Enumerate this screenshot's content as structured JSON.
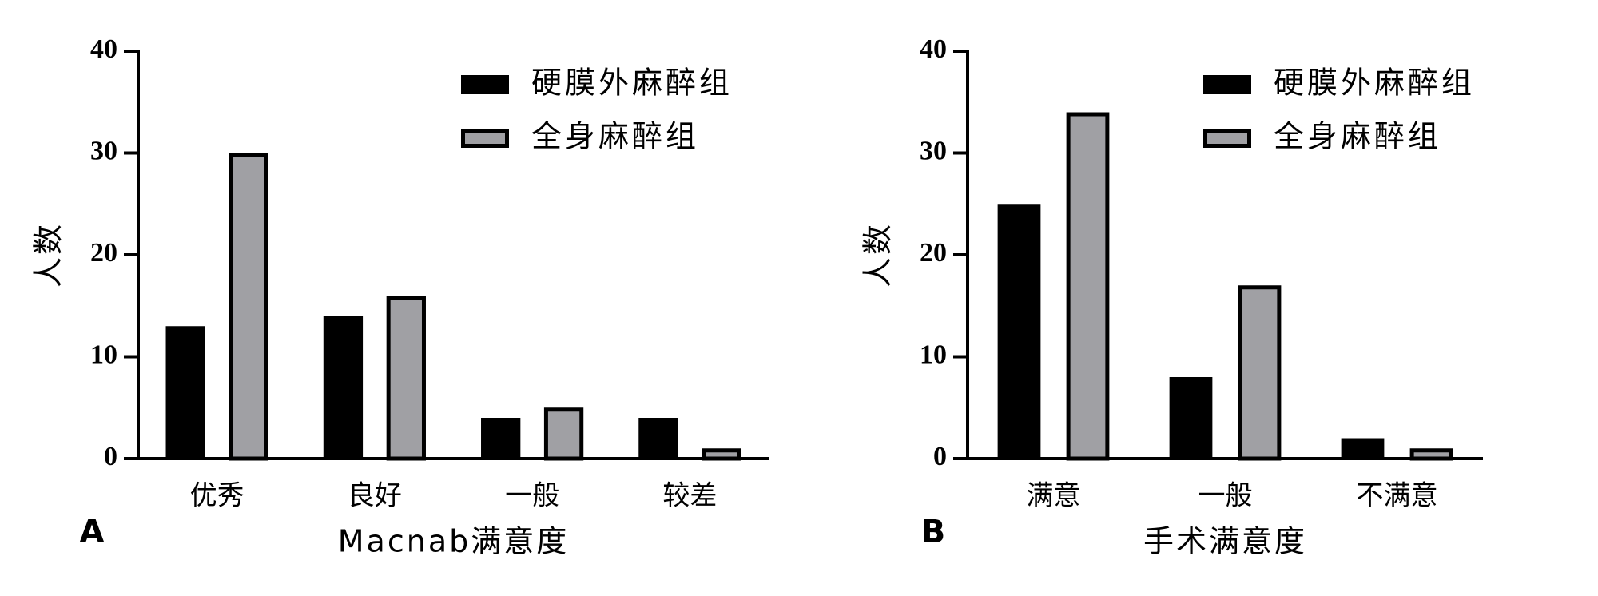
{
  "chart_data": [
    {
      "type": "bar",
      "panel_label": "A",
      "y_label": "人数",
      "x_label": "Macnab满意度",
      "categories": [
        "优秀",
        "良好",
        "一般",
        "较差"
      ],
      "series": [
        {
          "name": "硬膜外麻醉组",
          "color": "#000000",
          "values": [
            13,
            14,
            4,
            4
          ]
        },
        {
          "name": "全身麻醉组",
          "color": "#a0a0a4",
          "values": [
            30,
            16,
            5,
            1
          ]
        }
      ],
      "ylim": [
        0,
        40
      ],
      "yticks": [
        0,
        10,
        20,
        30,
        40
      ]
    },
    {
      "type": "bar",
      "panel_label": "B",
      "y_label": "人数",
      "x_label": "手术满意度",
      "categories": [
        "满意",
        "一般",
        "不满意"
      ],
      "series": [
        {
          "name": "硬膜外麻醉组",
          "color": "#000000",
          "values": [
            25,
            8,
            2
          ]
        },
        {
          "name": "全身麻醉组",
          "color": "#a0a0a4",
          "values": [
            34,
            17,
            1
          ]
        }
      ],
      "ylim": [
        0,
        40
      ],
      "yticks": [
        0,
        10,
        20,
        30,
        40
      ]
    }
  ]
}
